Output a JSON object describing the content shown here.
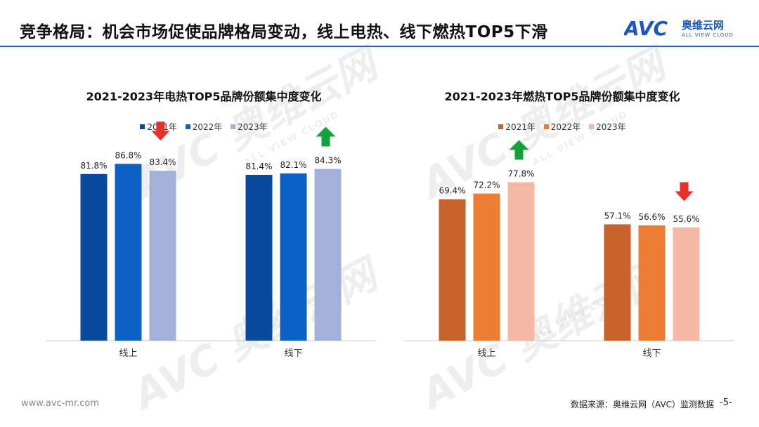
{
  "page": {
    "title": "竞争格局：机会市场促使品牌格局变动，线上电热、线下燃热TOP5下滑",
    "logo_cn": "奥维云网",
    "logo_en": "ALL VIEW CLOUD",
    "logo_mark": "AVC",
    "footer_url": "www.avc-mr.com",
    "footer_source": "数据来源：奥维云网（AVC）监测数据",
    "page_number": "-5-",
    "watermark_cn": "奥维云网",
    "watermark_en": "ALL VIEW CLOUD",
    "watermark_mark": "AVC"
  },
  "chart_data": [
    {
      "type": "bar",
      "title": "2021-2023年电热TOP5品牌份额集中度变化",
      "categories": [
        "线上",
        "线下"
      ],
      "series": [
        {
          "name": "2021年",
          "values": [
            81.8,
            81.4
          ],
          "labels": [
            "81.8%",
            "81.4%"
          ],
          "color": "#0a4a9c"
        },
        {
          "name": "2022年",
          "values": [
            86.8,
            82.1
          ],
          "labels": [
            "86.8%",
            "82.1%"
          ],
          "color": "#0b62c4"
        },
        {
          "name": "2023年",
          "values": [
            83.4,
            84.3
          ],
          "labels": [
            "83.4%",
            "84.3%"
          ],
          "color": "#a3b1d9"
        }
      ],
      "ylim": [
        0,
        100
      ],
      "grid": false,
      "legend": "top-center",
      "arrows": [
        {
          "category": "线上",
          "direction": "down",
          "color": "#e8312a"
        },
        {
          "category": "线下",
          "direction": "up",
          "color": "#12a33b"
        }
      ]
    },
    {
      "type": "bar",
      "title": "2021-2023年燃热TOP5品牌份额集中度变化",
      "categories": [
        "线上",
        "线下"
      ],
      "series": [
        {
          "name": "2021年",
          "values": [
            69.4,
            57.1
          ],
          "labels": [
            "69.4%",
            "57.1%"
          ],
          "color": "#c9612a"
        },
        {
          "name": "2022年",
          "values": [
            72.2,
            56.6
          ],
          "labels": [
            "72.2%",
            "56.6%"
          ],
          "color": "#ec7d32"
        },
        {
          "name": "2023年",
          "values": [
            77.8,
            55.6
          ],
          "labels": [
            "77.8%",
            "55.6%"
          ],
          "color": "#f4b9a5"
        }
      ],
      "ylim": [
        0,
        100
      ],
      "grid": false,
      "legend": "top-center",
      "arrows": [
        {
          "category": "线上",
          "direction": "up",
          "color": "#12a33b"
        },
        {
          "category": "线下",
          "direction": "down",
          "color": "#e8312a"
        }
      ]
    }
  ]
}
